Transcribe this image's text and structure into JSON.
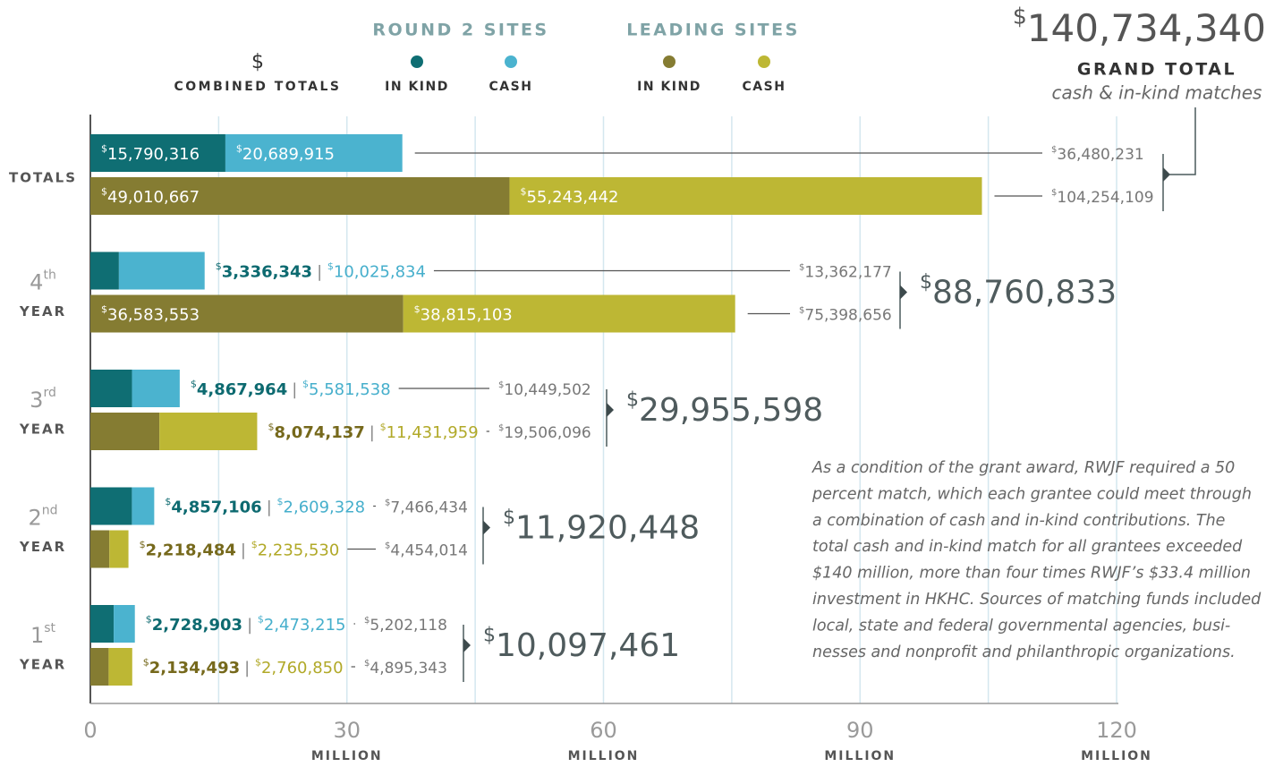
{
  "chart_data": {
    "type": "bar",
    "orientation": "horizontal",
    "currency_symbol": "$",
    "label_separator": "|",
    "legend_combined": "COMBINED TOTALS",
    "categories": [
      "TOTALS",
      "4",
      "3",
      "2",
      "1"
    ],
    "category_suffixes": [
      null,
      "th",
      "rd",
      "nd",
      "st"
    ],
    "category_unit": "YEAR",
    "groups": [
      {
        "name": "ROUND 2 SITES",
        "series": [
          {
            "name": "IN KIND",
            "color": "#0f6e73",
            "label_color": "#0d6a70",
            "values": [
              15790316,
              3336343,
              4867964,
              4857106,
              2728903
            ],
            "value_labels": [
              "15,790,316",
              "3,336,343",
              "4,867,964",
              "4,857,106",
              "2,728,903"
            ]
          },
          {
            "name": "CASH",
            "color": "#4bb3cf",
            "label_color": "#46afcc",
            "values": [
              20689915,
              10025834,
              5581538,
              2609328,
              2473215
            ],
            "value_labels": [
              "20,689,915",
              "10,025,834",
              "5,581,538",
              "2,609,328",
              "2,473,215"
            ]
          }
        ],
        "totals": [
          36480231,
          13362177,
          10449502,
          7466434,
          5202118
        ],
        "total_labels": [
          "36,480,231",
          "13,362,177",
          "10,449,502",
          "7,466,434",
          "5,202,118"
        ]
      },
      {
        "name": "LEADING SITES",
        "series": [
          {
            "name": "IN KIND",
            "color": "#857c32",
            "label_color": "#76691c",
            "values": [
              49010667,
              36583553,
              8074137,
              2218484,
              2134493
            ],
            "value_labels": [
              "49,010,667",
              "36,583,553",
              "8,074,137",
              "2,218,484",
              "2,134,493"
            ]
          },
          {
            "name": "CASH",
            "color": "#bdb734",
            "label_color": "#b1a928",
            "values": [
              55243442,
              38815103,
              11431959,
              2235530,
              2760850
            ],
            "value_labels": [
              "55,243,442",
              "38,815,103",
              "11,431,959",
              "2,235,530",
              "2,760,850"
            ]
          }
        ],
        "totals": [
          104254109,
          75398656,
          19506096,
          4454014,
          4895343
        ],
        "total_labels": [
          "104,254,109",
          "75,398,656",
          "19,506,096",
          "4,454,014",
          "4,895,343"
        ]
      }
    ],
    "category_totals": [
      140734340,
      88760833,
      29955598,
      11920448,
      10097461
    ],
    "category_total_labels": [
      "140,734,340",
      "88,760,833",
      "29,955,598",
      "11,920,448",
      "10,097,461"
    ],
    "grand_total_title": "GRAND TOTAL",
    "grand_total_subtitle": "cash & in-kind matches",
    "xlim": [
      0,
      120000000
    ],
    "xticks": [
      {
        "value": 0,
        "label": "0"
      },
      {
        "value": 30000000,
        "label": "30"
      },
      {
        "value": 60000000,
        "label": "60"
      },
      {
        "value": 90000000,
        "label": "90"
      },
      {
        "value": 120000000,
        "label": "120"
      }
    ],
    "x_minor_ticks": [
      15000000,
      45000000,
      75000000,
      105000000
    ],
    "xtick_unit": "MILLION",
    "grid": true,
    "annotation_lines": [
      "As a condition of the grant award, RWJF required a 50",
      "percent match, which each grantee could meet through",
      "a combination of cash and in-kind contributions. The",
      "total cash and in-kind match for all grantees exceeded",
      "$140 million, more than four times RWJF’s $33.4 million",
      "investment in HKHC. Sources of matching funds included",
      "local, state and federal governmental agencies, busi-",
      "nesses and nonprofit and philanthropic organizations."
    ]
  }
}
